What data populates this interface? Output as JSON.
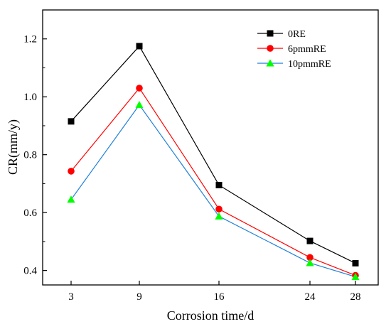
{
  "chart_data": {
    "type": "line",
    "xlabel": "Corrosion time/d",
    "ylabel": "CR(mm/y)",
    "x": [
      3,
      9,
      16,
      24,
      28
    ],
    "x_tick_labels": [
      "3",
      "9",
      "16",
      "24",
      "28"
    ],
    "xlim": [
      0.5,
      30
    ],
    "ylim": [
      0.35,
      1.3
    ],
    "y_ticks": [
      0.4,
      0.6,
      0.8,
      1.0,
      1.2
    ],
    "y_tick_labels": [
      "0.4",
      "0.6",
      "0.8",
      "1.0",
      "1.2"
    ],
    "legend_position": "top-right",
    "grid": false,
    "series": [
      {
        "name": "0RE",
        "color": "#000000",
        "marker": "square",
        "values": [
          0.915,
          1.175,
          0.695,
          0.502,
          0.425
        ]
      },
      {
        "name": "6pmmRE",
        "color": "#ff0000",
        "marker": "circle",
        "values": [
          0.743,
          1.03,
          0.612,
          0.445,
          0.383
        ]
      },
      {
        "name": "10pmmRE",
        "color": "#00ff00",
        "line_color": "#1e7fd8",
        "marker": "triangle",
        "values": [
          0.645,
          0.972,
          0.587,
          0.426,
          0.378
        ]
      }
    ]
  }
}
